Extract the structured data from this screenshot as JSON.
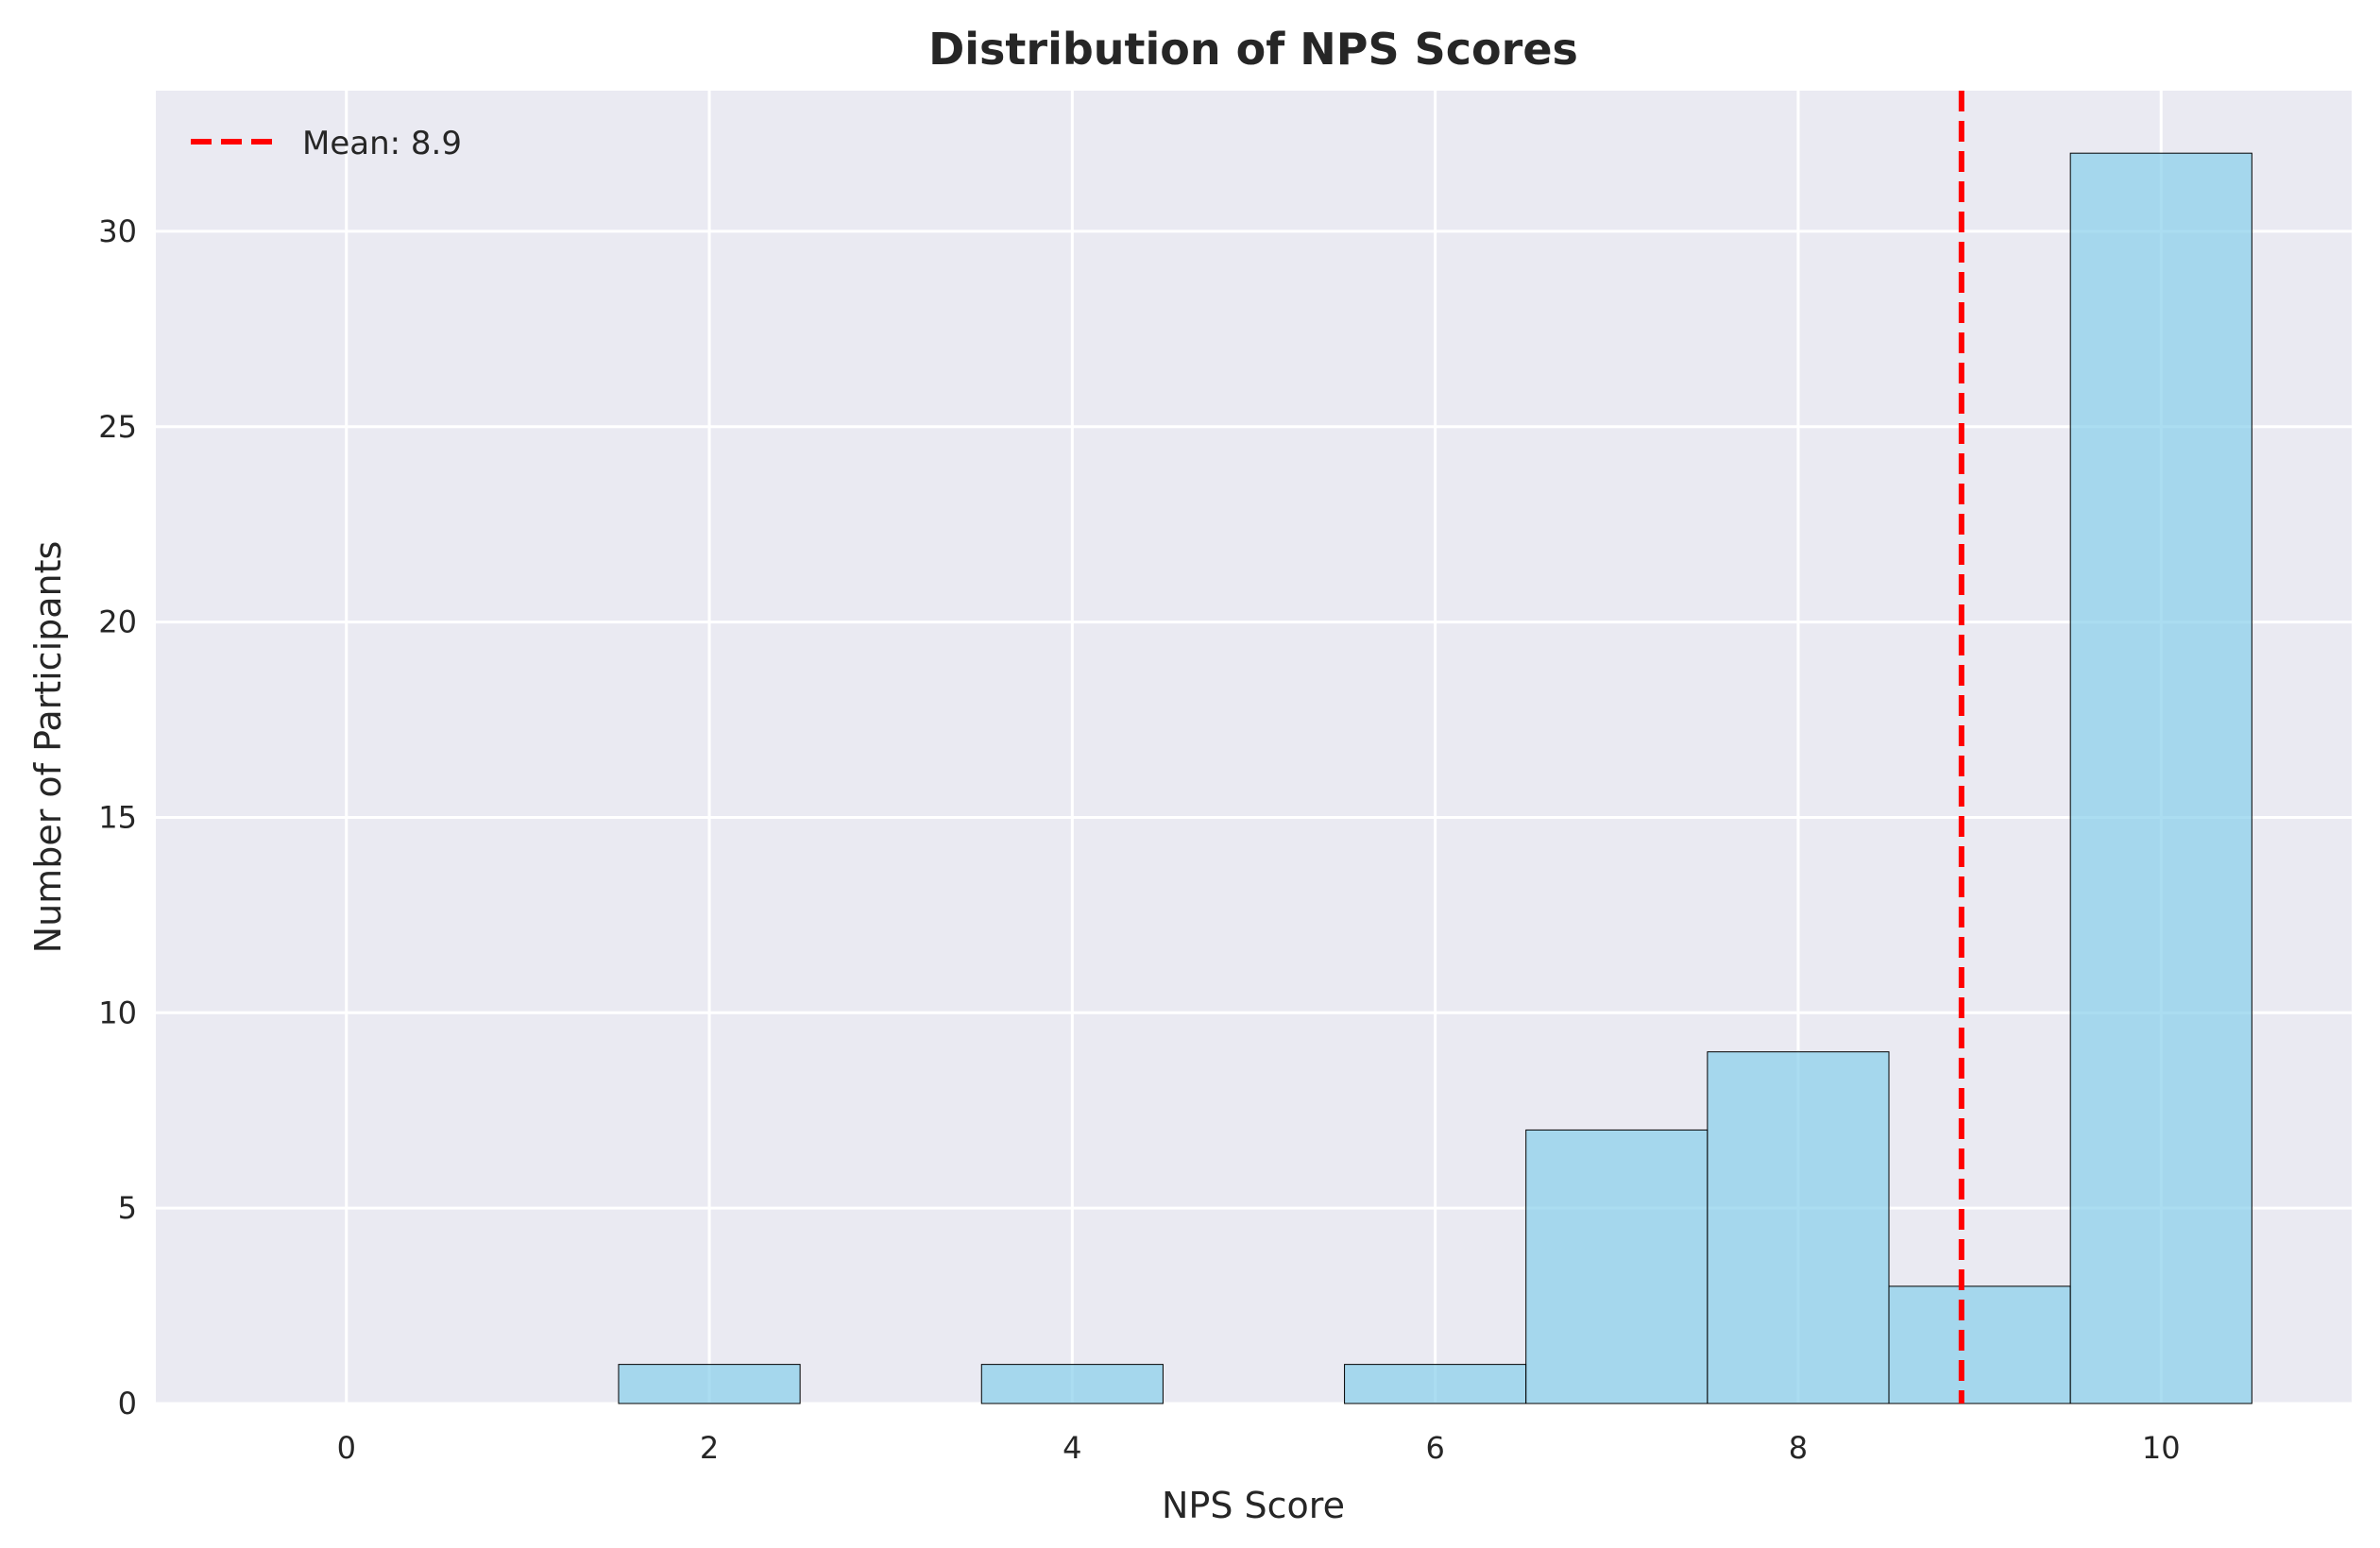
{
  "chart_data": {
    "type": "bar",
    "title": "Distribution of NPS Scores",
    "xlabel": "NPS Score",
    "ylabel": "Number of Participants",
    "bin_centers": [
      1,
      2,
      3,
      4,
      5,
      6,
      7,
      8,
      9,
      10
    ],
    "bin_width": 1,
    "values": [
      0,
      1,
      0,
      1,
      0,
      1,
      7,
      9,
      3,
      32
    ],
    "xlim": [
      -1.05,
      11.05
    ],
    "ylim": [
      0,
      33.6
    ],
    "xticks": [
      0,
      2,
      4,
      6,
      8,
      10
    ],
    "yticks": [
      0,
      5,
      10,
      15,
      20,
      25,
      30
    ],
    "xtick_labels": [
      "0",
      "2",
      "4",
      "6",
      "8",
      "10"
    ],
    "ytick_labels": [
      "0",
      "5",
      "10",
      "15",
      "20",
      "25",
      "30"
    ],
    "mean_line": {
      "value": 8.9,
      "label": "Mean: 8.9",
      "color": "#ff0000",
      "style": "dashed"
    },
    "legend": {
      "placement": "top-left",
      "entries": [
        "Mean: 8.9"
      ]
    },
    "grid": true,
    "colors": {
      "bar_fill": "#87ceeb",
      "bar_edge": "#000000",
      "plot_background": "#eaeaf2",
      "grid": "#ffffff"
    }
  }
}
